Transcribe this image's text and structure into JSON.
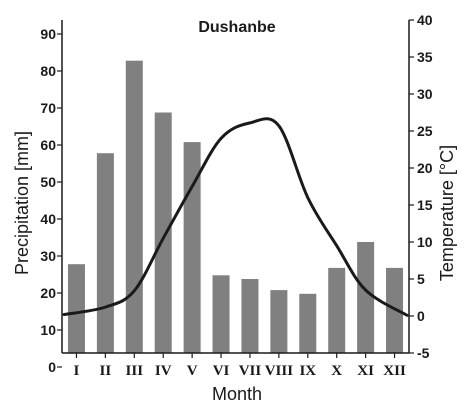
{
  "chart_data": {
    "type": "bar",
    "title": "Dushanbe",
    "xlabel": "Month",
    "ylabel": "Precipitation [mm]",
    "y2label": "Temperature [°C]",
    "categories": [
      "I",
      "II",
      "III",
      "IV",
      "V",
      "VI",
      "VII",
      "VIII",
      "IX",
      "X",
      "XI",
      "XII"
    ],
    "ylim": [
      0,
      90
    ],
    "y2lim": [
      -5,
      40
    ],
    "yticks": [
      "0",
      "10",
      "20",
      "30",
      "40",
      "50",
      "60",
      "70",
      "80",
      "90"
    ],
    "y2ticks": [
      "-5",
      "0",
      "5",
      "10",
      "15",
      "20",
      "25",
      "30",
      "35",
      "40"
    ],
    "grid": false,
    "series": [
      {
        "type": "bar",
        "axis": "left",
        "color": "#808080",
        "values": [
          24,
          54,
          79,
          65,
          57,
          21,
          20,
          17,
          16,
          23,
          30,
          23
        ]
      },
      {
        "type": "line",
        "axis": "right",
        "color": "#1a1a1a",
        "values": [
          0.2,
          1.2,
          3.4,
          10.5,
          17.5,
          24.0,
          26.1,
          25.7,
          16.0,
          9.5,
          3.5,
          0.1
        ]
      }
    ]
  }
}
